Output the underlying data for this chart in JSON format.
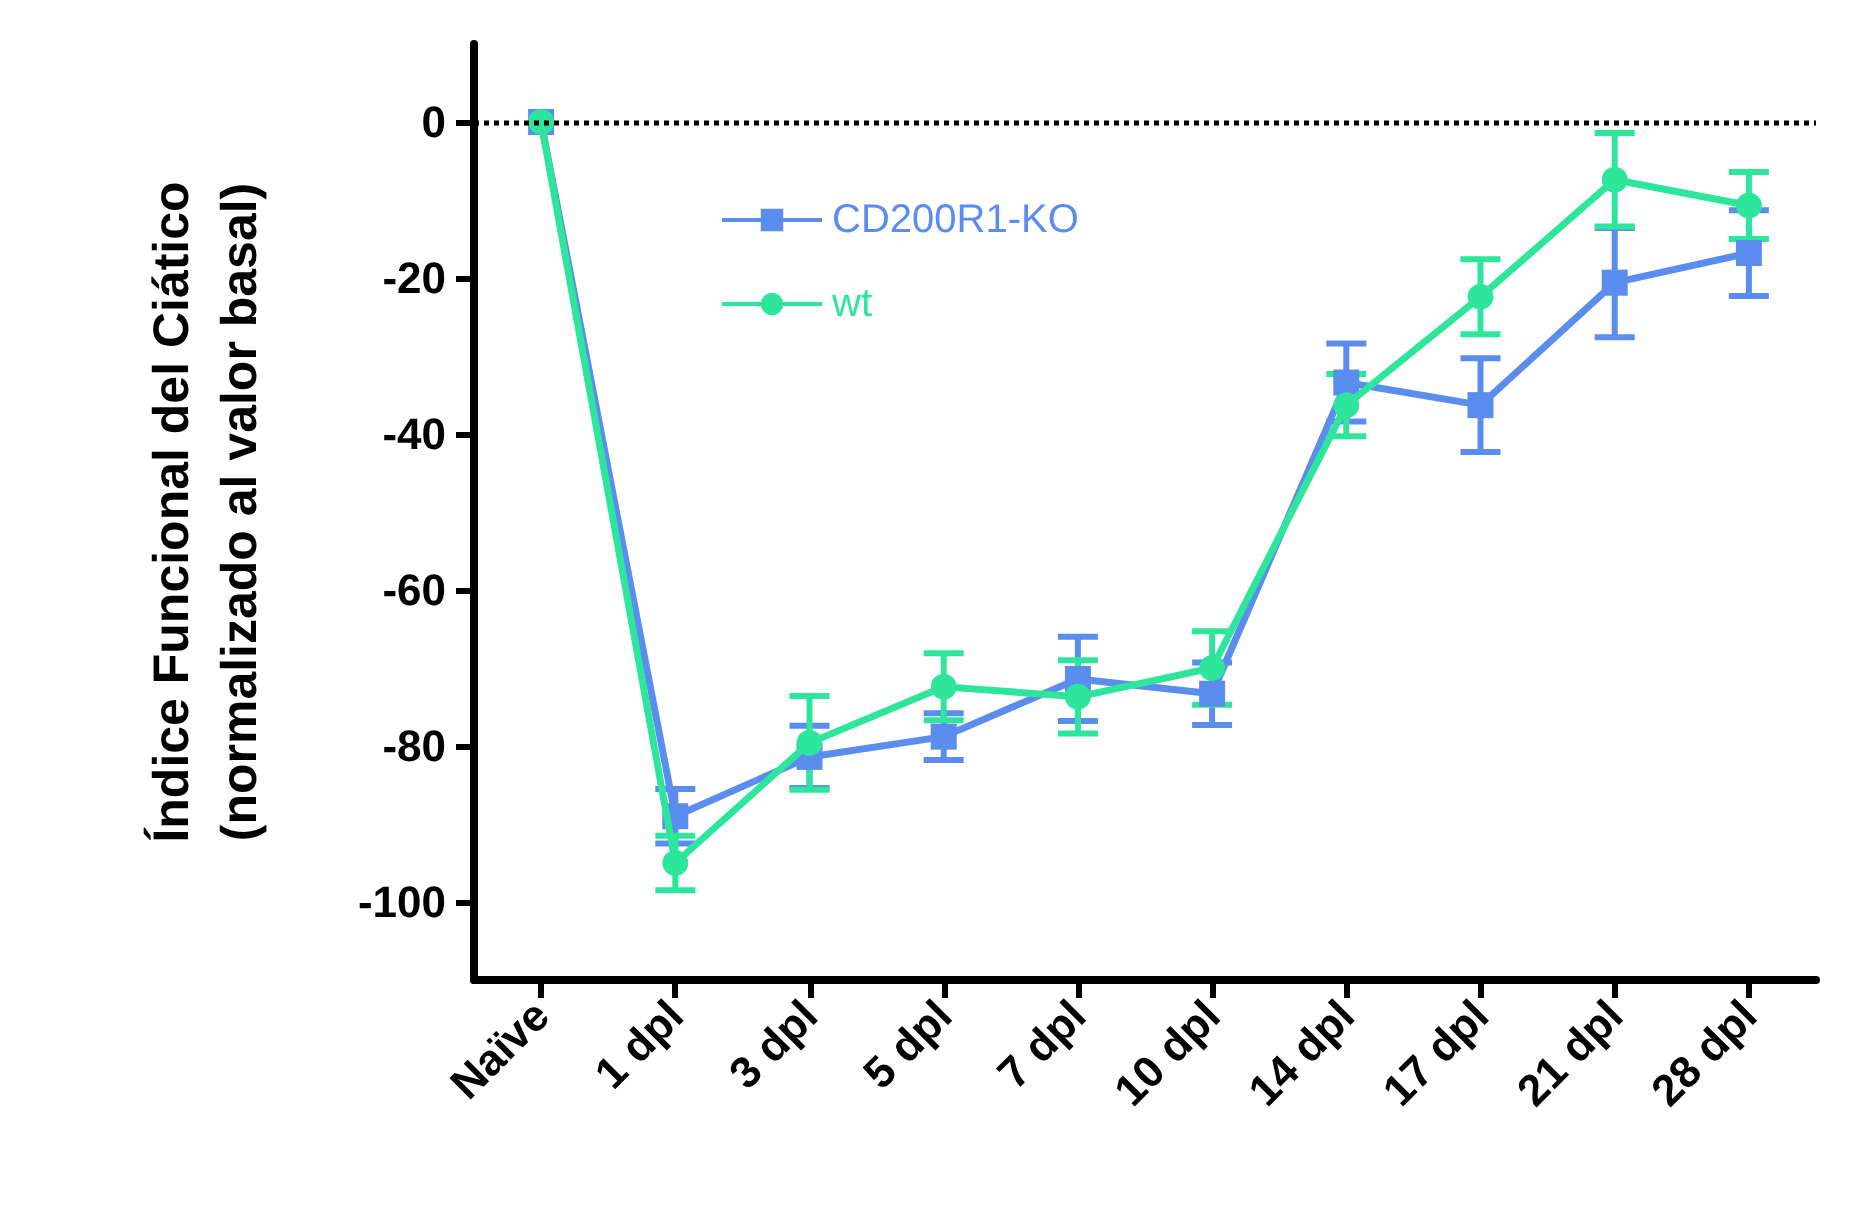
{
  "chart_data": {
    "type": "line",
    "ylabel": "Índice Funcional del Ciático\n(normalizado al valor basal)",
    "categories": [
      "Naïve",
      "1 dpl",
      "3 dpl",
      "5 dpl",
      "7 dpl",
      "10 dpl",
      "14 dpl",
      "17 dpl",
      "21 dpl",
      "28 dpl"
    ],
    "series": [
      {
        "name": "CD200R1-KO",
        "color": "#5b8def",
        "marker": "square",
        "values": [
          0,
          -89,
          -81.4,
          -78.8,
          -71.4,
          -73.3,
          -33.4,
          -36.3,
          -20.6,
          -16.8
        ],
        "errors": [
          null,
          3.5,
          4,
          3,
          5.4,
          4,
          5,
          6,
          7,
          5.5
        ]
      },
      {
        "name": "wt",
        "color": "#2ee69b",
        "marker": "circle",
        "values": [
          0,
          -95,
          -79.6,
          -72.4,
          -73.7,
          -70,
          -36.3,
          -22.4,
          -7.4,
          -10.7
        ],
        "errors": [
          null,
          3.5,
          6,
          4.3,
          4.7,
          4.7,
          4,
          4.8,
          6,
          4.3
        ]
      }
    ],
    "ylim": [
      -110,
      10
    ],
    "yticks": [
      0,
      -20,
      -40,
      -60,
      -80,
      -100
    ],
    "grid": false,
    "legend": "top left",
    "ref_lines": [
      {
        "axis": "y",
        "value": 0,
        "color": "#000000",
        "line_style": "dotted"
      }
    ]
  }
}
